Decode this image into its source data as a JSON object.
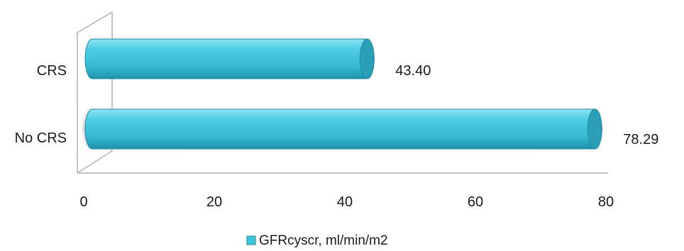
{
  "chart_data": {
    "type": "bar",
    "orientation": "horizontal",
    "categories": [
      "CRS",
      "No CRS"
    ],
    "series": [
      {
        "name": "GFRcyscr, ml/min/m2",
        "values": [
          43.4,
          78.29
        ]
      }
    ],
    "data_labels": [
      "43.40",
      "78.29"
    ],
    "x_ticks": [
      "0",
      "20",
      "40",
      "60",
      "80"
    ],
    "xlim": [
      0,
      80
    ],
    "grid": false,
    "legend_position": "bottom",
    "bar_color": "#3ec3dc",
    "bar_edge_color": "#1e8aa0",
    "bar_end_color": "#2a9fb6"
  }
}
